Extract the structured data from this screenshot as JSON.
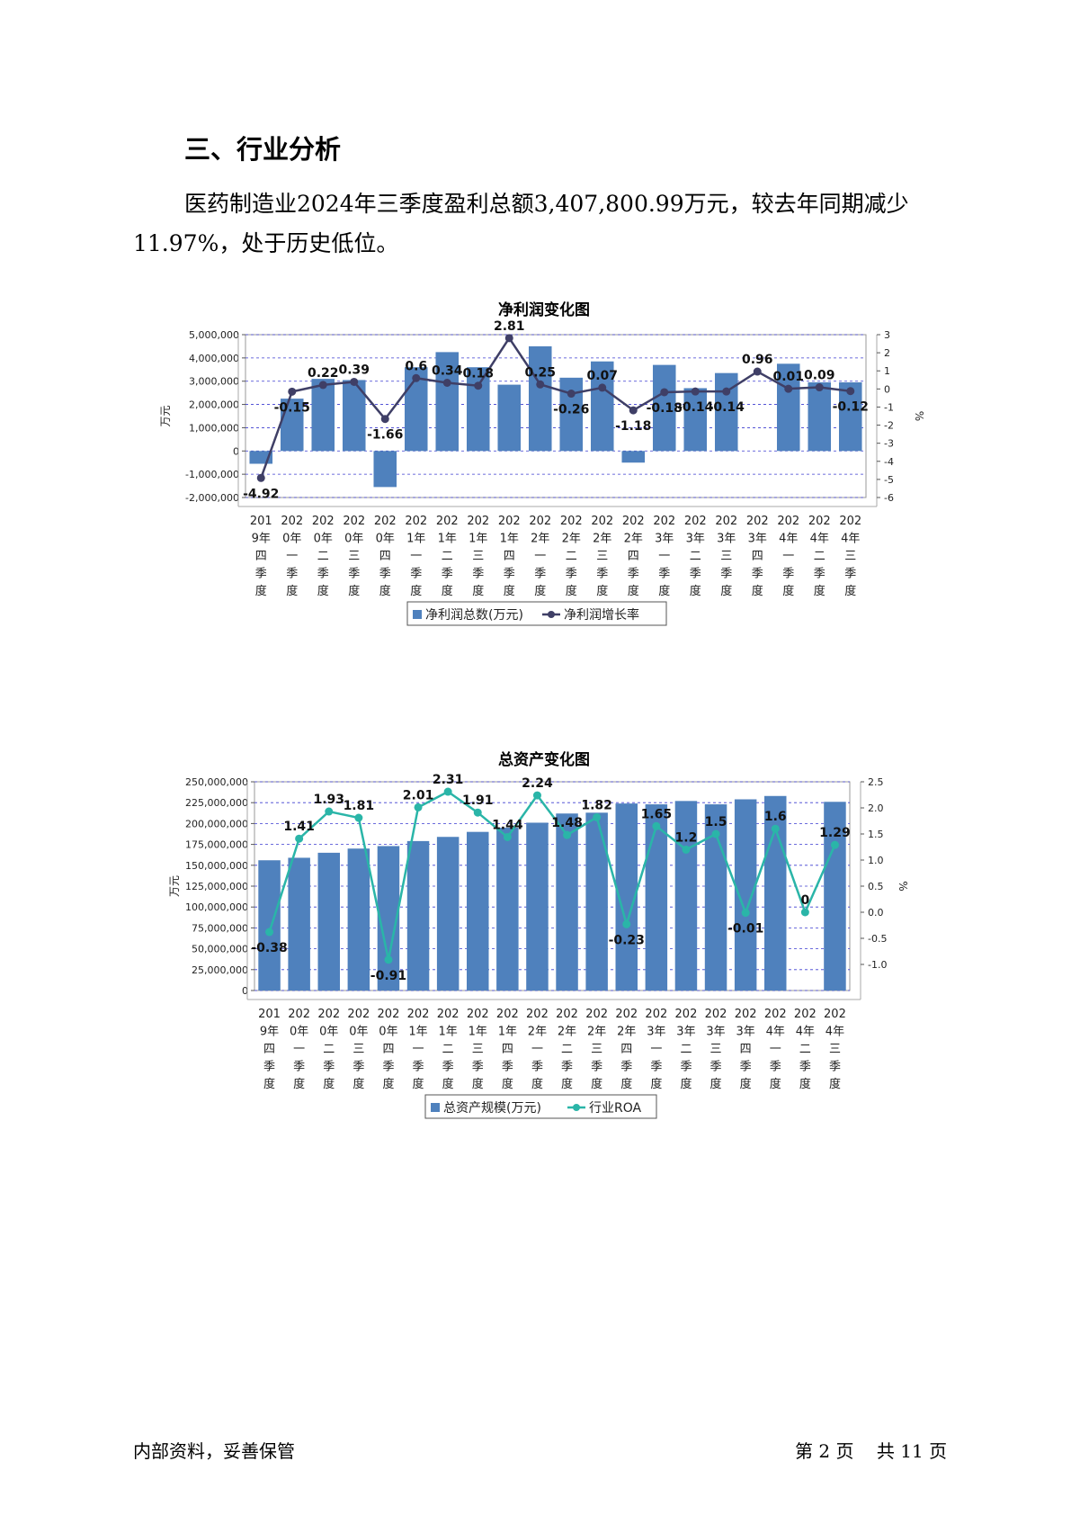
{
  "heading": "三、行业分析",
  "paragraph": "医药制造业2024年三季度盈利总额3,407,800.99万元，较去年同期减少11.97%，处于历史低位。",
  "footer": {
    "left": "内部资料，妥善保管",
    "page_prefix": "第",
    "page_num": "2",
    "page_mid": "页",
    "total_prefix": "共",
    "total_num": "11",
    "total_suffix": "页"
  },
  "chart_data": [
    {
      "type": "bar",
      "title": "净利润变化图",
      "ylabel": "万元",
      "y2label": "%",
      "ylim": [
        -2000000,
        5000000
      ],
      "yticks": [
        "5,000,000",
        "4,000,000",
        "3,000,000",
        "2,000,000",
        "1,000,000",
        "0",
        "-1,000,000",
        "-2,000,000"
      ],
      "y2lim": [
        -6,
        3
      ],
      "y2ticks": [
        "3",
        "2",
        "1",
        "0",
        "-1",
        "-2",
        "-3",
        "-4",
        "-5",
        "-6"
      ],
      "categories": [
        [
          "201",
          "9年",
          "四",
          "季",
          "度"
        ],
        [
          "202",
          "0年",
          "一",
          "季",
          "度"
        ],
        [
          "202",
          "0年",
          "二",
          "季",
          "度"
        ],
        [
          "202",
          "0年",
          "三",
          "季",
          "度"
        ],
        [
          "202",
          "0年",
          "四",
          "季",
          "度"
        ],
        [
          "202",
          "1年",
          "一",
          "季",
          "度"
        ],
        [
          "202",
          "1年",
          "二",
          "季",
          "度"
        ],
        [
          "202",
          "1年",
          "三",
          "季",
          "度"
        ],
        [
          "202",
          "1年",
          "四",
          "季",
          "度"
        ],
        [
          "202",
          "2年",
          "一",
          "季",
          "度"
        ],
        [
          "202",
          "2年",
          "二",
          "季",
          "度"
        ],
        [
          "202",
          "2年",
          "三",
          "季",
          "度"
        ],
        [
          "202",
          "2年",
          "四",
          "季",
          "度"
        ],
        [
          "202",
          "3年",
          "一",
          "季",
          "度"
        ],
        [
          "202",
          "3年",
          "二",
          "季",
          "度"
        ],
        [
          "202",
          "3年",
          "三",
          "季",
          "度"
        ],
        [
          "202",
          "3年",
          "四",
          "季",
          "度"
        ],
        [
          "202",
          "4年",
          "一",
          "季",
          "度"
        ],
        [
          "202",
          "4年",
          "二",
          "季",
          "度"
        ],
        [
          "202",
          "4年",
          "三",
          "季",
          "度"
        ]
      ],
      "series": [
        {
          "name": "净利润总数(万元)",
          "kind": "bar",
          "color": "#4f81bd",
          "values": [
            -550000,
            2250000,
            3100000,
            3050000,
            -1550000,
            3600000,
            4250000,
            3600000,
            2850000,
            4500000,
            3150000,
            3850000,
            -500000,
            3700000,
            2700000,
            3350000,
            0,
            3750000,
            2950000,
            2950000
          ]
        },
        {
          "name": "净利润增长率",
          "kind": "line",
          "color": "#3f3f66",
          "values": [
            -4.92,
            -0.15,
            0.22,
            0.39,
            -1.66,
            0.6,
            0.34,
            0.18,
            2.81,
            0.25,
            -0.26,
            0.07,
            -1.18,
            -0.18,
            -0.14,
            -0.14,
            0.96,
            0.01,
            0.09,
            -0.12
          ],
          "labels": [
            "-4.92",
            "-0.15",
            "0.22",
            "0.39",
            "-1.66",
            "0.6",
            "0.34",
            "0.18",
            "2.81",
            "0.25",
            "-0.26",
            "0.07",
            "-1.18",
            "-0.18",
            "-0.14",
            "-0.14",
            "0.96",
            "0.01",
            "0.09",
            "-0.12"
          ]
        }
      ],
      "legend": "bottom"
    },
    {
      "type": "bar",
      "title": "总资产变化图",
      "ylabel": "万元",
      "y2label": "%",
      "ylim": [
        0,
        250000000
      ],
      "yticks": [
        "250,000,000",
        "225,000,000",
        "200,000,000",
        "175,000,000",
        "150,000,000",
        "125,000,000",
        "100,000,000",
        "75,000,000",
        "50,000,000",
        "25,000,000",
        "0"
      ],
      "y2lim": [
        -1.5,
        2.5
      ],
      "y2ticks": [
        "2.5",
        "2.0",
        "1.5",
        "1.0",
        "0.5",
        "0.0",
        "-0.5",
        "-1.0"
      ],
      "categories": [
        [
          "201",
          "9年",
          "四",
          "季",
          "度"
        ],
        [
          "202",
          "0年",
          "一",
          "季",
          "度"
        ],
        [
          "202",
          "0年",
          "二",
          "季",
          "度"
        ],
        [
          "202",
          "0年",
          "三",
          "季",
          "度"
        ],
        [
          "202",
          "0年",
          "四",
          "季",
          "度"
        ],
        [
          "202",
          "1年",
          "一",
          "季",
          "度"
        ],
        [
          "202",
          "1年",
          "二",
          "季",
          "度"
        ],
        [
          "202",
          "1年",
          "三",
          "季",
          "度"
        ],
        [
          "202",
          "1年",
          "四",
          "季",
          "度"
        ],
        [
          "202",
          "2年",
          "一",
          "季",
          "度"
        ],
        [
          "202",
          "2年",
          "二",
          "季",
          "度"
        ],
        [
          "202",
          "2年",
          "三",
          "季",
          "度"
        ],
        [
          "202",
          "2年",
          "四",
          "季",
          "度"
        ],
        [
          "202",
          "3年",
          "一",
          "季",
          "度"
        ],
        [
          "202",
          "3年",
          "二",
          "季",
          "度"
        ],
        [
          "202",
          "3年",
          "三",
          "季",
          "度"
        ],
        [
          "202",
          "3年",
          "四",
          "季",
          "度"
        ],
        [
          "202",
          "4年",
          "一",
          "季",
          "度"
        ],
        [
          "202",
          "4年",
          "二",
          "季",
          "度"
        ],
        [
          "202",
          "4年",
          "三",
          "季",
          "度"
        ]
      ],
      "series": [
        {
          "name": "总资产规模(万元)",
          "kind": "bar",
          "color": "#4f81bd",
          "values": [
            156000000,
            159000000,
            165000000,
            170000000,
            173000000,
            179000000,
            184000000,
            190000000,
            195000000,
            201000000,
            212000000,
            213000000,
            224000000,
            223000000,
            227000000,
            223000000,
            229000000,
            233000000,
            0,
            226000000
          ]
        },
        {
          "name": "行业ROA",
          "kind": "line",
          "color": "#2ab5a8",
          "values": [
            -0.38,
            1.41,
            1.93,
            1.81,
            -0.91,
            2.01,
            2.31,
            1.91,
            1.44,
            2.24,
            1.48,
            1.82,
            -0.23,
            1.65,
            1.2,
            1.5,
            -0.01,
            1.6,
            0,
            1.29
          ],
          "labels": [
            "-0.38",
            "1.41",
            "1.93",
            "1.81",
            "-0.91",
            "2.01",
            "2.31",
            "1.91",
            "1.44",
            "2.24",
            "1.48",
            "1.82",
            "-0.23",
            "1.65",
            "1.2",
            "1.5",
            "-0.01",
            "1.6",
            "0",
            "1.29"
          ]
        }
      ],
      "legend": "bottom"
    }
  ]
}
